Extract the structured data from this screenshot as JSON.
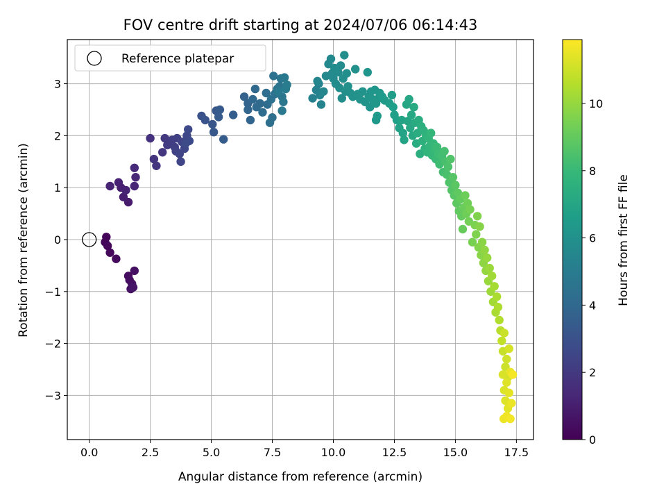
{
  "chart_data": {
    "type": "scatter",
    "title": "FOV centre drift starting at 2024/07/06 06:14:43",
    "xlabel": "Angular distance from reference (arcmin)",
    "ylabel": "Rotation from reference (arcmin)",
    "colorbar_label": "Hours from first FF file",
    "xlim": [
      -0.9,
      18.2
    ],
    "ylim": [
      -3.85,
      3.85
    ],
    "clim": [
      0,
      11.9
    ],
    "x_ticks": [
      0.0,
      2.5,
      5.0,
      7.5,
      10.0,
      12.5,
      15.0,
      17.5
    ],
    "x_tick_labels": [
      "0.0",
      "2.5",
      "5.0",
      "7.5",
      "10.0",
      "12.5",
      "15.0",
      "17.5"
    ],
    "y_ticks": [
      -3,
      -2,
      -1,
      0,
      1,
      2,
      3
    ],
    "y_tick_labels": [
      "−3",
      "−2",
      "−1",
      "0",
      "1",
      "2",
      "3"
    ],
    "colorbar_ticks": [
      0,
      2,
      4,
      6,
      8,
      10
    ],
    "colorbar_tick_labels": [
      "0",
      "2",
      "4",
      "6",
      "8",
      "10"
    ],
    "colormap": [
      "#440154",
      "#482878",
      "#3e4989",
      "#31688e",
      "#26828e",
      "#1f9e89",
      "#35b779",
      "#6ece58",
      "#b5de2b",
      "#fde725"
    ],
    "grid": true,
    "legend": {
      "placement": "upper-left",
      "entries": [
        "Reference platepar"
      ]
    },
    "reference_point": {
      "name": "Reference platepar",
      "x": 0.0,
      "y": 0.0
    },
    "points": [
      [
        0.7,
        0.05,
        0.1
      ],
      [
        0.65,
        -0.05,
        0.15
      ],
      [
        0.75,
        -0.12,
        0.2
      ],
      [
        0.85,
        -0.25,
        0.25
      ],
      [
        1.1,
        -0.37,
        0.3
      ],
      [
        1.6,
        -0.7,
        0.4
      ],
      [
        1.65,
        -0.78,
        0.45
      ],
      [
        1.75,
        -0.85,
        0.5
      ],
      [
        1.85,
        -0.6,
        0.55
      ],
      [
        1.7,
        -0.95,
        0.6
      ],
      [
        1.8,
        -0.92,
        0.65
      ],
      [
        1.6,
        0.72,
        0.9
      ],
      [
        1.4,
        0.82,
        1.0
      ],
      [
        1.3,
        1.0,
        1.05
      ],
      [
        1.2,
        1.1,
        1.1
      ],
      [
        1.5,
        0.95,
        1.15
      ],
      [
        0.85,
        1.03,
        1.2
      ],
      [
        1.85,
        1.03,
        1.3
      ],
      [
        1.9,
        1.2,
        1.35
      ],
      [
        1.85,
        1.38,
        1.4
      ],
      [
        2.5,
        1.95,
        1.7
      ],
      [
        2.65,
        1.55,
        1.8
      ],
      [
        2.75,
        1.42,
        1.85
      ],
      [
        3.0,
        1.68,
        1.9
      ],
      [
        3.1,
        1.95,
        2.0
      ],
      [
        3.2,
        1.82,
        2.1
      ],
      [
        3.4,
        1.92,
        2.2
      ],
      [
        3.5,
        1.78,
        2.25
      ],
      [
        3.6,
        1.95,
        2.3
      ],
      [
        3.55,
        1.7,
        2.35
      ],
      [
        3.8,
        1.88,
        2.4
      ],
      [
        3.7,
        1.65,
        2.45
      ],
      [
        3.75,
        1.5,
        2.5
      ],
      [
        3.9,
        1.75,
        2.55
      ],
      [
        4.0,
        2.0,
        2.6
      ],
      [
        4.05,
        2.12,
        2.65
      ],
      [
        4.1,
        1.9,
        2.7
      ],
      [
        3.95,
        1.85,
        2.75
      ],
      [
        4.6,
        2.38,
        3.0
      ],
      [
        4.75,
        2.3,
        3.1
      ],
      [
        5.05,
        2.22,
        3.2
      ],
      [
        5.1,
        2.07,
        3.25
      ],
      [
        5.2,
        2.48,
        3.3
      ],
      [
        5.35,
        2.5,
        3.35
      ],
      [
        5.3,
        2.36,
        3.4
      ],
      [
        5.5,
        1.93,
        3.45
      ],
      [
        5.9,
        2.4,
        3.55
      ],
      [
        6.35,
        2.75,
        3.7
      ],
      [
        6.5,
        2.62,
        3.8
      ],
      [
        6.6,
        2.3,
        3.85
      ],
      [
        6.5,
        2.5,
        3.9
      ],
      [
        6.7,
        2.7,
        3.95
      ],
      [
        6.8,
        2.9,
        4.0
      ],
      [
        6.85,
        2.55,
        4.05
      ],
      [
        7.0,
        2.62,
        4.1
      ],
      [
        7.1,
        2.45,
        4.15
      ],
      [
        7.3,
        2.6,
        4.2
      ],
      [
        7.25,
        2.82,
        4.25
      ],
      [
        7.4,
        2.25,
        4.3
      ],
      [
        7.5,
        2.35,
        4.35
      ],
      [
        7.45,
        2.7,
        4.4
      ],
      [
        7.55,
        3.15,
        4.45
      ],
      [
        7.6,
        2.8,
        4.5
      ],
      [
        7.7,
        2.9,
        4.55
      ],
      [
        7.8,
        2.95,
        4.6
      ],
      [
        7.85,
        3.1,
        4.65
      ],
      [
        7.9,
        2.75,
        4.7
      ],
      [
        7.95,
        2.65,
        4.75
      ],
      [
        8.0,
        3.12,
        4.8
      ],
      [
        7.9,
        2.48,
        4.85
      ],
      [
        7.75,
        2.85,
        4.9
      ],
      [
        8.05,
        2.9,
        4.95
      ],
      [
        8.1,
        2.98,
        5.0
      ],
      [
        9.15,
        2.72,
        5.2
      ],
      [
        9.3,
        2.88,
        5.25
      ],
      [
        9.4,
        3.0,
        5.3
      ],
      [
        9.5,
        2.6,
        5.35
      ],
      [
        9.45,
        2.78,
        5.4
      ],
      [
        9.35,
        3.05,
        5.45
      ],
      [
        9.6,
        2.85,
        5.5
      ],
      [
        9.7,
        3.15,
        5.55
      ],
      [
        9.8,
        3.38,
        5.6
      ],
      [
        9.9,
        3.48,
        5.6
      ],
      [
        9.95,
        3.2,
        5.65
      ],
      [
        10.0,
        3.1,
        5.65
      ],
      [
        10.05,
        3.3,
        5.7
      ],
      [
        10.1,
        3.0,
        5.7
      ],
      [
        10.2,
        3.22,
        5.75
      ],
      [
        10.3,
        3.35,
        5.75
      ],
      [
        10.25,
        2.92,
        5.8
      ],
      [
        10.35,
        2.72,
        5.8
      ],
      [
        10.4,
        3.1,
        5.85
      ],
      [
        10.45,
        3.55,
        5.85
      ],
      [
        10.5,
        2.85,
        5.9
      ],
      [
        10.55,
        3.2,
        5.9
      ],
      [
        10.6,
        2.95,
        5.95
      ],
      [
        10.7,
        2.82,
        5.95
      ],
      [
        10.8,
        2.75,
        6.0
      ],
      [
        10.9,
        3.28,
        6.0
      ],
      [
        11.0,
        2.8,
        6.05
      ],
      [
        11.1,
        2.7,
        6.05
      ],
      [
        11.2,
        2.85,
        6.1
      ],
      [
        11.3,
        2.65,
        6.1
      ],
      [
        11.4,
        3.22,
        6.15
      ],
      [
        11.45,
        2.75,
        6.15
      ],
      [
        11.5,
        2.55,
        6.2
      ],
      [
        11.55,
        2.85,
        6.2
      ],
      [
        11.6,
        2.7,
        6.25
      ],
      [
        11.7,
        2.88,
        6.25
      ],
      [
        11.75,
        2.62,
        6.3
      ],
      [
        11.8,
        2.7,
        6.3
      ],
      [
        11.9,
        2.82,
        6.35
      ],
      [
        11.75,
        2.3,
        6.35
      ],
      [
        11.8,
        2.38,
        6.4
      ],
      [
        12.0,
        2.75,
        6.4
      ],
      [
        12.1,
        2.68,
        6.45
      ],
      [
        12.3,
        2.62,
        6.5
      ],
      [
        12.4,
        2.78,
        6.55
      ],
      [
        12.45,
        2.55,
        6.6
      ],
      [
        12.5,
        2.4,
        6.65
      ],
      [
        12.6,
        2.3,
        6.7
      ],
      [
        12.7,
        2.15,
        6.8
      ],
      [
        12.8,
        2.3,
        6.85
      ],
      [
        12.85,
        2.05,
        6.9
      ],
      [
        12.9,
        1.92,
        6.95
      ],
      [
        13.0,
        2.6,
        7.0
      ],
      [
        13.05,
        2.28,
        7.0
      ],
      [
        13.1,
        2.7,
        7.05
      ],
      [
        13.15,
        2.15,
        7.1
      ],
      [
        13.2,
        2.4,
        7.1
      ],
      [
        13.25,
        2.0,
        7.15
      ],
      [
        13.3,
        2.55,
        7.2
      ],
      [
        13.35,
        2.25,
        7.25
      ],
      [
        13.4,
        1.85,
        7.3
      ],
      [
        13.45,
        2.05,
        7.35
      ],
      [
        13.5,
        2.3,
        7.35
      ],
      [
        13.55,
        1.65,
        7.4
      ],
      [
        13.6,
        2.18,
        7.45
      ],
      [
        13.65,
        1.9,
        7.5
      ],
      [
        13.7,
        2.1,
        7.55
      ],
      [
        13.75,
        1.75,
        7.6
      ],
      [
        13.8,
        2.0,
        7.65
      ],
      [
        13.85,
        1.68,
        7.7
      ],
      [
        13.9,
        1.95,
        7.75
      ],
      [
        13.95,
        1.8,
        7.8
      ],
      [
        14.0,
        2.05,
        7.85
      ],
      [
        14.05,
        1.62,
        7.9
      ],
      [
        14.1,
        1.85,
        7.95
      ],
      [
        14.15,
        1.72,
        8.0
      ],
      [
        14.2,
        1.55,
        8.05
      ],
      [
        14.25,
        1.78,
        8.1
      ],
      [
        14.3,
        1.65,
        8.15
      ],
      [
        14.35,
        1.45,
        8.2
      ],
      [
        14.45,
        1.6,
        8.25
      ],
      [
        14.5,
        1.3,
        8.3
      ],
      [
        14.55,
        1.7,
        8.35
      ],
      [
        14.6,
        1.5,
        8.4
      ],
      [
        14.65,
        1.25,
        8.45
      ],
      [
        14.7,
        1.4,
        8.5
      ],
      [
        14.75,
        1.1,
        8.55
      ],
      [
        14.8,
        1.55,
        8.6
      ],
      [
        14.85,
        0.95,
        8.65
      ],
      [
        14.9,
        1.2,
        8.7
      ],
      [
        14.95,
        0.85,
        8.75
      ],
      [
        15.0,
        1.05,
        8.8
      ],
      [
        15.05,
        0.7,
        8.85
      ],
      [
        15.1,
        0.9,
        8.9
      ],
      [
        15.15,
        0.55,
        8.95
      ],
      [
        15.2,
        0.78,
        9.0
      ],
      [
        15.25,
        0.45,
        9.05
      ],
      [
        15.3,
        0.2,
        9.1
      ],
      [
        15.35,
        0.62,
        9.15
      ],
      [
        15.4,
        0.85,
        9.2
      ],
      [
        15.45,
        0.5,
        9.25
      ],
      [
        15.5,
        0.7,
        9.3
      ],
      [
        15.55,
        0.35,
        9.35
      ],
      [
        15.6,
        0.58,
        9.4
      ],
      [
        15.7,
        -0.05,
        9.45
      ],
      [
        15.8,
        0.28,
        9.5
      ],
      [
        15.85,
        0.1,
        9.55
      ],
      [
        15.9,
        0.45,
        9.6
      ],
      [
        15.95,
        -0.15,
        9.65
      ],
      [
        16.0,
        0.25,
        9.7
      ],
      [
        16.05,
        -0.3,
        9.75
      ],
      [
        16.1,
        -0.05,
        9.8
      ],
      [
        16.15,
        -0.45,
        9.85
      ],
      [
        16.2,
        -0.2,
        9.9
      ],
      [
        16.25,
        -0.6,
        9.95
      ],
      [
        16.3,
        -0.35,
        10.0
      ],
      [
        16.35,
        -0.8,
        10.05
      ],
      [
        16.4,
        -0.55,
        10.1
      ],
      [
        16.45,
        -1.0,
        10.15
      ],
      [
        16.5,
        -0.7,
        10.2
      ],
      [
        16.55,
        -1.2,
        10.25
      ],
      [
        16.6,
        -0.9,
        10.3
      ],
      [
        16.65,
        -1.4,
        10.35
      ],
      [
        16.7,
        -1.1,
        10.4
      ],
      [
        16.75,
        -1.3,
        10.45
      ],
      [
        16.8,
        -1.55,
        10.5
      ],
      [
        16.85,
        -1.75,
        10.6
      ],
      [
        16.9,
        -1.95,
        10.8
      ],
      [
        16.95,
        -2.15,
        10.9
      ],
      [
        17.0,
        -1.8,
        10.95
      ],
      [
        17.05,
        -2.45,
        11.0
      ],
      [
        17.1,
        -2.3,
        11.05
      ],
      [
        17.15,
        -2.65,
        11.1
      ],
      [
        17.2,
        -2.1,
        11.15
      ],
      [
        16.95,
        -2.6,
        11.2
      ],
      [
        17.0,
        -2.9,
        11.25
      ],
      [
        17.05,
        -3.1,
        11.3
      ],
      [
        17.1,
        -2.75,
        11.35
      ],
      [
        17.15,
        -3.25,
        11.4
      ],
      [
        17.2,
        -2.95,
        11.45
      ],
      [
        17.25,
        -2.55,
        11.5
      ],
      [
        17.3,
        -3.15,
        11.55
      ],
      [
        16.98,
        -3.45,
        11.6
      ],
      [
        17.1,
        -3.4,
        11.65
      ],
      [
        17.25,
        -3.45,
        11.7
      ],
      [
        17.35,
        -2.6,
        11.75
      ]
    ]
  }
}
